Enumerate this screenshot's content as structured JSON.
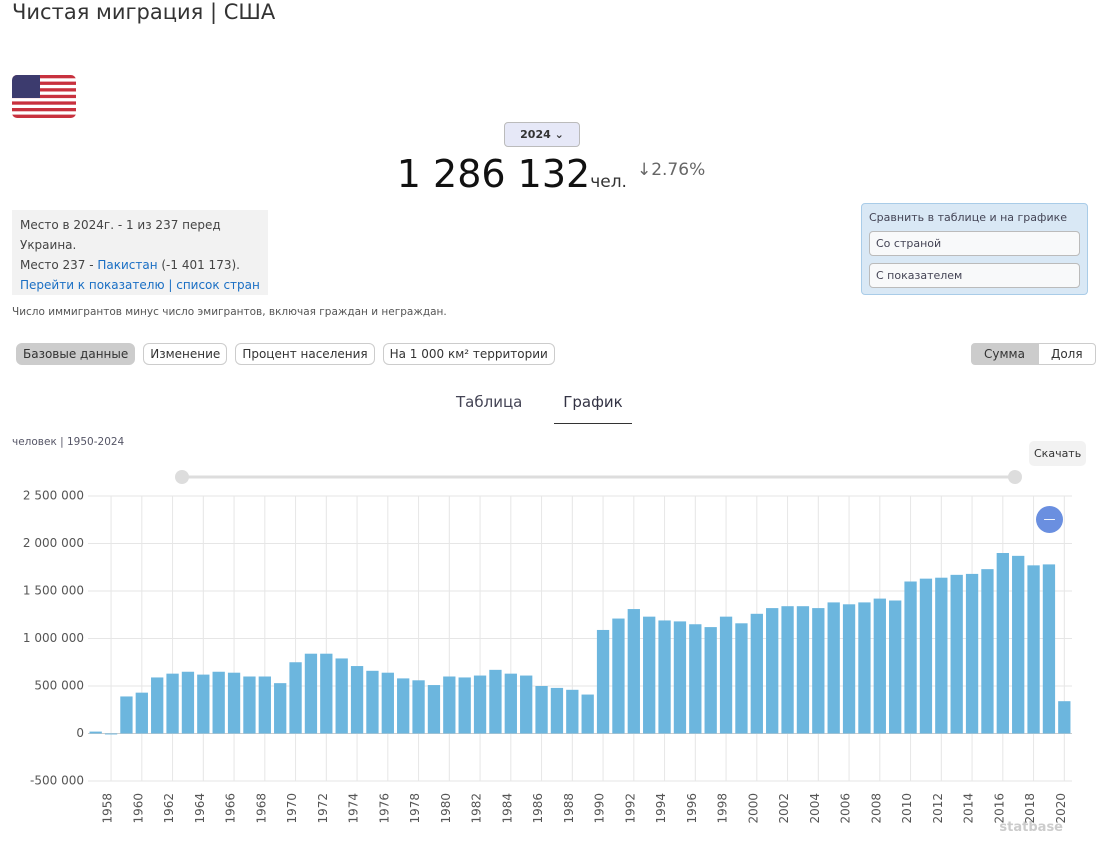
{
  "header": {
    "title": "Чистая миграция | США",
    "year": "2024",
    "value": "1 286 132",
    "unit": "чел.",
    "change": "↓2.76%"
  },
  "info": {
    "line1": "Место в 2024г. - 1 из 237 перед Украина.",
    "line2_prefix": "Место 237 - ",
    "line2_link": "Пакистан",
    "line2_suffix": " (-1 401 173).",
    "link1": "Перейти к показателю",
    "separator": " | ",
    "link2": "список стран"
  },
  "compare": {
    "title": "Сравнить в таблице и на графике",
    "select1": "Со страной",
    "select2": "С показателем"
  },
  "description": "Число иммигрантов минус число эмигрантов, включая граждан и неграждан.",
  "filters": [
    "Базовые данные",
    "Изменение",
    "Процент населения",
    "На 1 000 км² территории"
  ],
  "toggle": [
    "Сумма",
    "Доля"
  ],
  "tabs": [
    "Таблица",
    "График"
  ],
  "download": "Скачать",
  "watermark": "statbase",
  "chart_data": {
    "type": "bar",
    "subtitle": "человек | 1950-2024",
    "color": "#6cb6de",
    "grid": true,
    "categories": [
      null,
      "1958",
      null,
      "1960",
      null,
      "1962",
      null,
      "1964",
      null,
      "1966",
      null,
      "1968",
      null,
      "1970",
      null,
      "1972",
      null,
      "1974",
      null,
      "1976",
      null,
      "1978",
      null,
      "1980",
      null,
      "1982",
      null,
      "1984",
      null,
      "1986",
      null,
      "1988",
      null,
      "1990",
      null,
      "1992",
      null,
      "1994",
      null,
      "1996",
      null,
      "1998",
      null,
      "2000",
      null,
      "2002",
      null,
      "2004",
      null,
      "2006",
      null,
      "2008",
      null,
      "2010",
      null,
      "2012",
      null,
      "2014",
      null,
      "2016",
      null,
      "2018",
      null,
      "2020"
    ],
    "values": [
      20000,
      -10000,
      390000,
      430000,
      590000,
      630000,
      650000,
      620000,
      650000,
      640000,
      600000,
      600000,
      530000,
      750000,
      840000,
      840000,
      790000,
      710000,
      660000,
      640000,
      580000,
      560000,
      510000,
      600000,
      590000,
      610000,
      670000,
      630000,
      610000,
      500000,
      480000,
      460000,
      410000,
      1090000,
      1210000,
      1310000,
      1230000,
      1190000,
      1180000,
      1150000,
      1120000,
      1230000,
      1160000,
      1260000,
      1320000,
      1340000,
      1340000,
      1320000,
      1380000,
      1360000,
      1380000,
      1420000,
      1400000,
      1600000,
      1630000,
      1640000,
      1670000,
      1680000,
      1730000,
      1900000,
      1870000,
      1770000,
      1780000,
      340000
    ],
    "ylim": [
      -500000,
      2500000
    ],
    "yticks": [
      {
        "value": -500000,
        "label": "-500 000"
      },
      0,
      {
        "value": 500000,
        "label": "500 000"
      },
      {
        "value": 1000000,
        "label": "1 000 000"
      },
      {
        "value": 1500000,
        "label": "1 500 000"
      },
      {
        "value": 2000000,
        "label": "2 000 000"
      },
      {
        "value": 2500000,
        "label": "2 500 000"
      }
    ]
  }
}
